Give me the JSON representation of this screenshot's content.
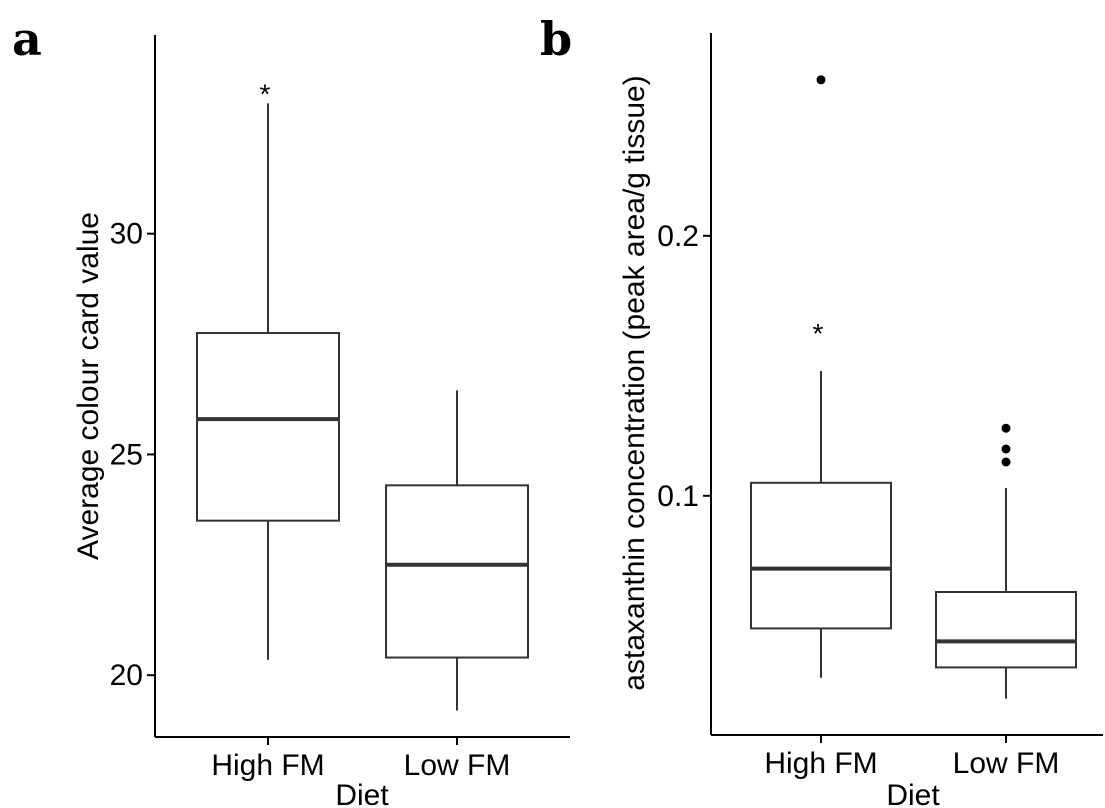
{
  "chart_data": [
    {
      "type": "boxplot",
      "panel_label": "a",
      "xlabel": "Diet",
      "ylabel": "Average colour card value",
      "ylim": [
        18.6,
        34.5
      ],
      "yticks": [
        20,
        25,
        30
      ],
      "categories": [
        "High FM",
        "Low FM"
      ],
      "boxes": [
        {
          "category": "High FM",
          "whisker_low": 20.35,
          "q1": 23.5,
          "median": 25.8,
          "q3": 27.75,
          "whisker_high": 32.95,
          "outliers": [],
          "annotation": "*"
        },
        {
          "category": "Low FM",
          "whisker_low": 19.2,
          "q1": 20.4,
          "median": 22.5,
          "q3": 24.3,
          "whisker_high": 26.45,
          "outliers": [],
          "annotation": ""
        }
      ],
      "grid": false
    },
    {
      "type": "boxplot",
      "panel_label": "b",
      "xlabel": "Diet",
      "ylabel": "astaxanthin concentration (peak area/g tissue)",
      "ylim": [
        0.008,
        0.278
      ],
      "yticks": [
        0.1,
        0.2
      ],
      "ytick_labels": [
        "0.1",
        "0.2"
      ],
      "categories": [
        "High FM",
        "Low FM"
      ],
      "boxes": [
        {
          "category": "High FM",
          "whisker_low": 0.03,
          "q1": 0.049,
          "median": 0.072,
          "q3": 0.105,
          "whisker_high": 0.148,
          "outliers": [
            0.26
          ],
          "annotation": "*"
        },
        {
          "category": "Low FM",
          "whisker_low": 0.022,
          "q1": 0.034,
          "median": 0.044,
          "q3": 0.063,
          "whisker_high": 0.103,
          "outliers": [
            0.113,
            0.118,
            0.126
          ],
          "annotation": ""
        }
      ],
      "grid": false
    }
  ],
  "colors": {
    "box_stroke": "#333333",
    "median": "#333333",
    "axis": "#000000",
    "outlier": "#000000"
  }
}
